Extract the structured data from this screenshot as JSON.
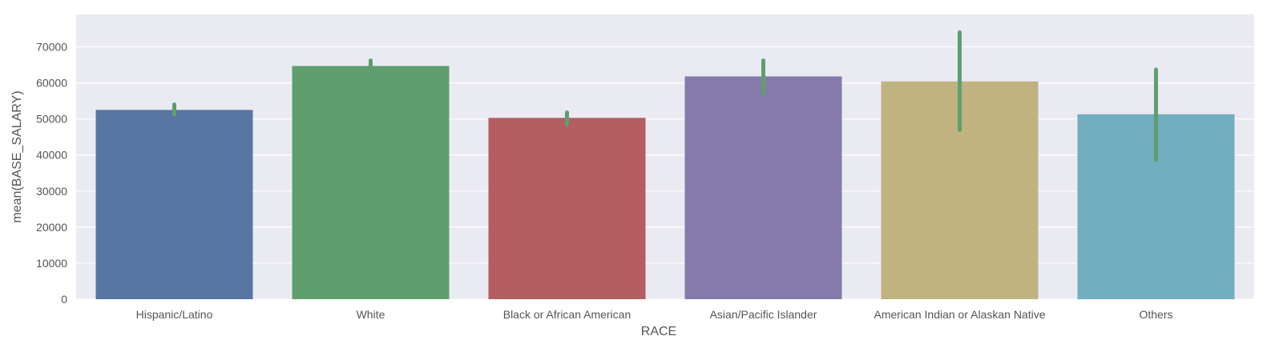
{
  "chart_data": {
    "type": "bar",
    "title": "",
    "xlabel": "RACE",
    "ylabel": "mean(BASE_SALARY)",
    "ylim": [
      0,
      79000
    ],
    "yticks": [
      0,
      10000,
      20000,
      30000,
      40000,
      50000,
      60000,
      70000
    ],
    "grid": true,
    "legend": "none",
    "categories": [
      "Hispanic/Latino",
      "White",
      "Black or African American",
      "Asian/Pacific Islander",
      "American Indian or Alaskan Native",
      "Others"
    ],
    "values": [
      52500,
      64700,
      50300,
      61800,
      60400,
      51300
    ],
    "error_low": [
      51200,
      63300,
      48500,
      57000,
      47000,
      38700
    ],
    "error_high": [
      54000,
      66200,
      51800,
      66200,
      74000,
      63700
    ],
    "colors": [
      "#5875a4",
      "#5f9e6e",
      "#b55d60",
      "#857aab",
      "#c1b37f",
      "#71aec0"
    ],
    "error_color": "#5f9e6e",
    "background_color": "#eaeaf2",
    "grid_color": "#ffffff"
  }
}
